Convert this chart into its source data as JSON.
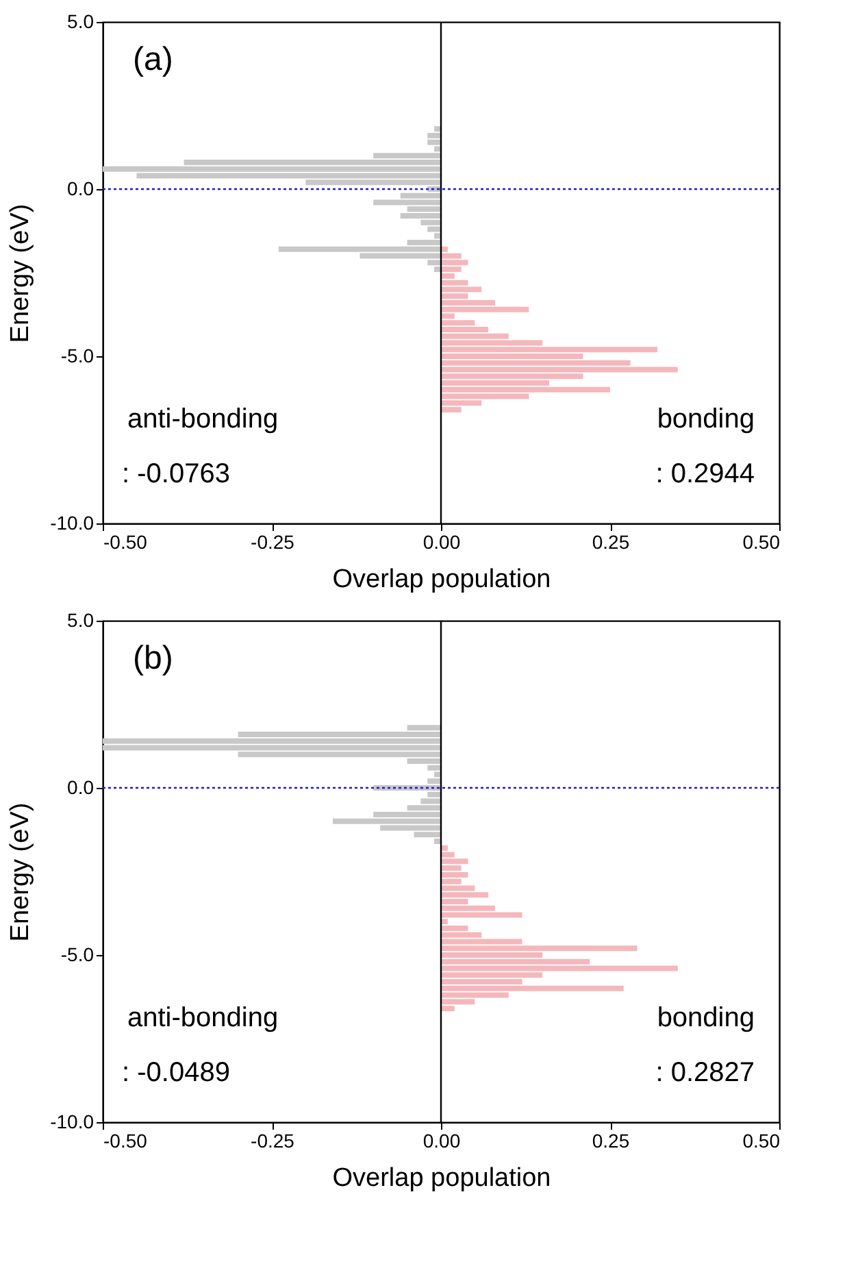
{
  "chart_data": [
    {
      "type": "bar",
      "orientation": "horizontal",
      "xlabel": "Overlap population",
      "ylabel": "Energy (eV)",
      "xlim": [
        -0.5,
        0.5
      ],
      "xticks": [
        {
          "value": -0.5,
          "label": "-0.50"
        },
        {
          "value": -0.25,
          "label": "-0.25"
        },
        {
          "value": 0,
          "label": "0.00"
        },
        {
          "value": 0.25,
          "label": "0.25"
        },
        {
          "value": 0.5,
          "label": "0.50"
        }
      ],
      "ylim": [
        -10,
        5
      ],
      "yticks": [
        {
          "value": -10,
          "label": "-10.0"
        },
        {
          "value": -5,
          "label": "-5.0"
        },
        {
          "value": 0,
          "label": "0.0"
        },
        {
          "value": 5,
          "label": "5.0"
        }
      ],
      "series": [
        {
          "color": "#c8c8c8",
          "x": [
            1.8,
            1.6,
            1.4,
            1.2,
            1.0,
            0.8,
            0.6,
            0.4,
            0.2,
            0.0,
            -0.2,
            -0.4,
            -0.6,
            -0.8,
            -1.0,
            -1.2,
            -1.4,
            -1.6,
            -1.8,
            -2.0,
            -2.2,
            -2.4
          ],
          "values": [
            -0.01,
            -0.02,
            -0.02,
            -0.01,
            -0.1,
            -0.38,
            -0.5,
            -0.45,
            -0.2,
            -0.02,
            -0.06,
            -0.1,
            -0.05,
            -0.06,
            -0.03,
            -0.02,
            -0.01,
            -0.05,
            -0.24,
            -0.12,
            -0.02,
            -0.01
          ]
        },
        {
          "color": "#f4b8bc",
          "x": [
            -1.8,
            -2.0,
            -2.2,
            -2.4,
            -2.6,
            -2.8,
            -3.0,
            -3.2,
            -3.4,
            -3.6,
            -3.8,
            -4.0,
            -4.2,
            -4.4,
            -4.6,
            -4.8,
            -5.0,
            -5.2,
            -5.4,
            -5.6,
            -5.8,
            -6.0,
            -6.2,
            -6.4,
            -6.6
          ],
          "values": [
            0.01,
            0.03,
            0.04,
            0.03,
            0.02,
            0.04,
            0.06,
            0.04,
            0.08,
            0.13,
            0.02,
            0.05,
            0.07,
            0.1,
            0.15,
            0.32,
            0.21,
            0.28,
            0.35,
            0.21,
            0.16,
            0.25,
            0.13,
            0.06,
            0.03
          ]
        }
      ],
      "ref_lines": [
        {
          "axis": "y",
          "value": 0,
          "color": "#1a1adc",
          "line_style": "dotted"
        },
        {
          "axis": "x",
          "value": 0,
          "color": "#000000",
          "line_style": "solid"
        }
      ],
      "annotations": [
        "(a)",
        "anti-bonding",
        ": -0.0763",
        "bonding",
        ": 0.2944"
      ]
    },
    {
      "type": "bar",
      "orientation": "horizontal",
      "xlabel": "Overlap population",
      "ylabel": "Energy (eV)",
      "xlim": [
        -0.5,
        0.5
      ],
      "xticks": [
        {
          "value": -0.5,
          "label": "-0.50"
        },
        {
          "value": -0.25,
          "label": "-0.25"
        },
        {
          "value": 0,
          "label": "0.00"
        },
        {
          "value": 0.25,
          "label": "0.25"
        },
        {
          "value": 0.5,
          "label": "0.50"
        }
      ],
      "ylim": [
        -10,
        5
      ],
      "yticks": [
        {
          "value": -10,
          "label": "-10.0"
        },
        {
          "value": -5,
          "label": "-5.0"
        },
        {
          "value": 0,
          "label": "0.0"
        },
        {
          "value": 5,
          "label": "5.0"
        }
      ],
      "series": [
        {
          "color": "#c8c8c8",
          "x": [
            1.8,
            1.6,
            1.4,
            1.2,
            1.0,
            0.8,
            0.6,
            0.4,
            0.2,
            0.0,
            -0.2,
            -0.4,
            -0.6,
            -0.8,
            -1.0,
            -1.2,
            -1.4,
            -1.6
          ],
          "values": [
            -0.05,
            -0.3,
            -0.5,
            -0.5,
            -0.3,
            -0.05,
            -0.02,
            -0.01,
            -0.02,
            -0.1,
            -0.02,
            -0.03,
            -0.05,
            -0.1,
            -0.16,
            -0.09,
            -0.04,
            -0.01
          ]
        },
        {
          "color": "#f4b8bc",
          "x": [
            -1.8,
            -2.0,
            -2.2,
            -2.4,
            -2.6,
            -2.8,
            -3.0,
            -3.2,
            -3.4,
            -3.6,
            -3.8,
            -4.0,
            -4.2,
            -4.4,
            -4.6,
            -4.8,
            -5.0,
            -5.2,
            -5.4,
            -5.6,
            -5.8,
            -6.0,
            -6.2,
            -6.4,
            -6.6
          ],
          "values": [
            0.01,
            0.02,
            0.04,
            0.03,
            0.04,
            0.03,
            0.05,
            0.07,
            0.04,
            0.08,
            0.12,
            0.01,
            0.04,
            0.06,
            0.12,
            0.29,
            0.15,
            0.22,
            0.35,
            0.15,
            0.12,
            0.27,
            0.1,
            0.05,
            0.02
          ]
        }
      ],
      "ref_lines": [
        {
          "axis": "y",
          "value": 0,
          "color": "#1a1adc",
          "line_style": "dotted"
        },
        {
          "axis": "x",
          "value": 0,
          "color": "#000000",
          "line_style": "solid"
        }
      ],
      "annotations": [
        "(b)",
        "anti-bonding",
        ": -0.0489",
        "bonding",
        ": 0.2827"
      ]
    }
  ]
}
